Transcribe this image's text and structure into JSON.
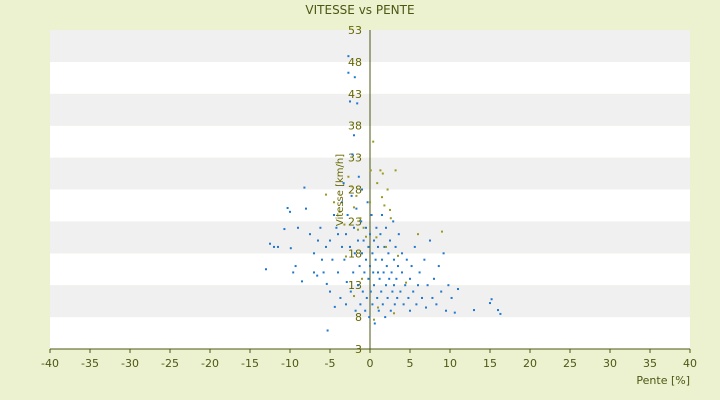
{
  "chart_data": {
    "type": "scatter",
    "title": "VITESSE vs PENTE",
    "xlabel": "Pente [%]",
    "ylabel": "Vitesse [km/h]",
    "xlim": [
      -40,
      40
    ],
    "ylim": [
      3,
      53
    ],
    "x_ticks": [
      -40,
      -35,
      -30,
      -25,
      -20,
      -15,
      -10,
      -5,
      0,
      5,
      10,
      15,
      20,
      25,
      30,
      35,
      40
    ],
    "y_ticks": [
      3,
      8,
      13,
      18,
      23,
      28,
      33,
      38,
      43,
      48,
      53
    ],
    "grid": "horizontal alternating bands",
    "colors": {
      "background": "#ecf1cf",
      "band_light": "#ffffff",
      "band_dark": "#f0f0f0",
      "axis": "#4d5714",
      "series_blue": "#1f77d0",
      "series_olive": "#9a9a20"
    },
    "series": [
      {
        "color": "#1f77d0",
        "points": [
          [
            -13,
            15.5
          ],
          [
            -12.5,
            19.5
          ],
          [
            -12,
            19
          ],
          [
            -11.5,
            19
          ],
          [
            -10.7,
            21.8
          ],
          [
            -10.3,
            25.1
          ],
          [
            -10,
            24.5
          ],
          [
            -9.9,
            18.8
          ],
          [
            -9.6,
            15
          ],
          [
            -9.3,
            16
          ],
          [
            -9,
            22
          ],
          [
            -8.5,
            13.6
          ],
          [
            -8.2,
            28.3
          ],
          [
            -8,
            25
          ],
          [
            -7.5,
            21
          ],
          [
            -7,
            18
          ],
          [
            -7,
            15
          ],
          [
            -6.6,
            14.5
          ],
          [
            -6.5,
            20
          ],
          [
            -6.2,
            22
          ],
          [
            -6,
            17
          ],
          [
            -5.8,
            15
          ],
          [
            -5.5,
            19
          ],
          [
            -5.4,
            13.2
          ],
          [
            -5.3,
            5.9
          ],
          [
            -5,
            12
          ],
          [
            -5,
            20
          ],
          [
            -4.7,
            17
          ],
          [
            -4.5,
            24
          ],
          [
            -4.4,
            9.6
          ],
          [
            -4.2,
            22
          ],
          [
            -4,
            15
          ],
          [
            -4,
            21
          ],
          [
            -3.7,
            11
          ],
          [
            -3.5,
            19
          ],
          [
            -3.5,
            26
          ],
          [
            -3.3,
            29
          ],
          [
            -3.2,
            17
          ],
          [
            -3,
            10
          ],
          [
            -3,
            21
          ],
          [
            -2.9,
            13.5
          ],
          [
            -2.8,
            24
          ],
          [
            -2.7,
            48.9
          ],
          [
            -2.7,
            46.3
          ],
          [
            -2.5,
            41.8
          ],
          [
            -2.5,
            19
          ],
          [
            -2.4,
            12
          ],
          [
            -2.3,
            27
          ],
          [
            -2.2,
            33.5
          ],
          [
            -2.1,
            15
          ],
          [
            -2,
            36.5
          ],
          [
            -2,
            22
          ],
          [
            -1.9,
            45.6
          ],
          [
            -1.9,
            18
          ],
          [
            -1.8,
            9
          ],
          [
            -1.7,
            25
          ],
          [
            -1.6,
            41.5
          ],
          [
            -1.5,
            20
          ],
          [
            -1.5,
            13
          ],
          [
            -1.4,
            30
          ],
          [
            -1.3,
            16
          ],
          [
            -1.2,
            10
          ],
          [
            -1.1,
            23
          ],
          [
            -1,
            18
          ],
          [
            -1,
            28
          ],
          [
            -0.9,
            12
          ],
          [
            -0.8,
            20
          ],
          [
            -0.7,
            15
          ],
          [
            -0.6,
            9
          ],
          [
            -0.5,
            22
          ],
          [
            -0.5,
            17
          ],
          [
            -0.4,
            11
          ],
          [
            -0.3,
            26
          ],
          [
            -0.2,
            14
          ],
          [
            -0.2,
            19
          ],
          [
            -0.1,
            8
          ],
          [
            0,
            21
          ],
          [
            0,
            16
          ],
          [
            0.1,
            12
          ],
          [
            0.2,
            24
          ],
          [
            0.3,
            18
          ],
          [
            0.3,
            10
          ],
          [
            0.4,
            15
          ],
          [
            0.5,
            20
          ],
          [
            0.5,
            13
          ],
          [
            0.6,
            7
          ],
          [
            0.7,
            17
          ],
          [
            0.8,
            22
          ],
          [
            0.9,
            11
          ],
          [
            1,
            15
          ],
          [
            1,
            19
          ],
          [
            1.1,
            9
          ],
          [
            1.2,
            14
          ],
          [
            1.3,
            21
          ],
          [
            1.4,
            12
          ],
          [
            1.5,
            17
          ],
          [
            1.5,
            24
          ],
          [
            1.6,
            10
          ],
          [
            1.7,
            15
          ],
          [
            1.8,
            19
          ],
          [
            1.9,
            8
          ],
          [
            2,
            13
          ],
          [
            2,
            22
          ],
          [
            2.1,
            16
          ],
          [
            2.2,
            11
          ],
          [
            2.3,
            18
          ],
          [
            2.4,
            14
          ],
          [
            2.5,
            20
          ],
          [
            2.6,
            9
          ],
          [
            2.7,
            15
          ],
          [
            2.8,
            12
          ],
          [
            2.9,
            23
          ],
          [
            3,
            17
          ],
          [
            3,
            13
          ],
          [
            3.1,
            10
          ],
          [
            3.2,
            19
          ],
          [
            3.3,
            14
          ],
          [
            3.4,
            11
          ],
          [
            3.5,
            16
          ],
          [
            3.6,
            21
          ],
          [
            3.8,
            12
          ],
          [
            4,
            15
          ],
          [
            4,
            18
          ],
          [
            4.2,
            10
          ],
          [
            4.4,
            13
          ],
          [
            4.6,
            17
          ],
          [
            4.8,
            11
          ],
          [
            5,
            14
          ],
          [
            5,
            9
          ],
          [
            5.2,
            16
          ],
          [
            5.4,
            12
          ],
          [
            5.6,
            19
          ],
          [
            5.8,
            10
          ],
          [
            6,
            13
          ],
          [
            6.2,
            15
          ],
          [
            6.5,
            11
          ],
          [
            6.8,
            17
          ],
          [
            7,
            9.5
          ],
          [
            7.2,
            13
          ],
          [
            7.5,
            20
          ],
          [
            7.8,
            11
          ],
          [
            8,
            14
          ],
          [
            8.3,
            10
          ],
          [
            8.6,
            16
          ],
          [
            8.9,
            12
          ],
          [
            9.2,
            18
          ],
          [
            9.5,
            9
          ],
          [
            9.8,
            13
          ],
          [
            10.2,
            11
          ],
          [
            10.6,
            8.7
          ],
          [
            11,
            12.4
          ],
          [
            13,
            9.1
          ],
          [
            15,
            10.2
          ],
          [
            15.2,
            10.8
          ],
          [
            16,
            9.1
          ],
          [
            16.3,
            8.5
          ]
        ]
      },
      {
        "color": "#9a9a20",
        "points": [
          [
            -5.5,
            27.2
          ],
          [
            -4.5,
            26
          ],
          [
            -3.8,
            24.5
          ],
          [
            -3.2,
            22.5
          ],
          [
            -2.7,
            30
          ],
          [
            -2.3,
            28.5
          ],
          [
            -2,
            25.2
          ],
          [
            -1.7,
            27
          ],
          [
            -1.2,
            23.5
          ],
          [
            -0.8,
            22
          ],
          [
            0.1,
            31
          ],
          [
            0.4,
            35.5
          ],
          [
            0.9,
            29
          ],
          [
            1.3,
            31
          ],
          [
            1.6,
            30.5
          ],
          [
            2.2,
            28
          ],
          [
            2.6,
            23.5
          ],
          [
            3.2,
            31
          ],
          [
            0,
            26
          ],
          [
            -0.5,
            20.6
          ],
          [
            1.5,
            26.8
          ],
          [
            2.5,
            24.8
          ],
          [
            -1.5,
            21.7
          ],
          [
            0.8,
            20.5
          ],
          [
            -3,
            17.5
          ],
          [
            2,
            19
          ],
          [
            3.5,
            17.6
          ],
          [
            6,
            21
          ],
          [
            9,
            21.4
          ],
          [
            -1,
            14
          ],
          [
            1,
            9.5
          ],
          [
            4.5,
            13.4
          ],
          [
            -2,
            11.3
          ],
          [
            0.5,
            7.6
          ],
          [
            3,
            8.6
          ],
          [
            1.8,
            25.5
          ]
        ]
      }
    ]
  }
}
